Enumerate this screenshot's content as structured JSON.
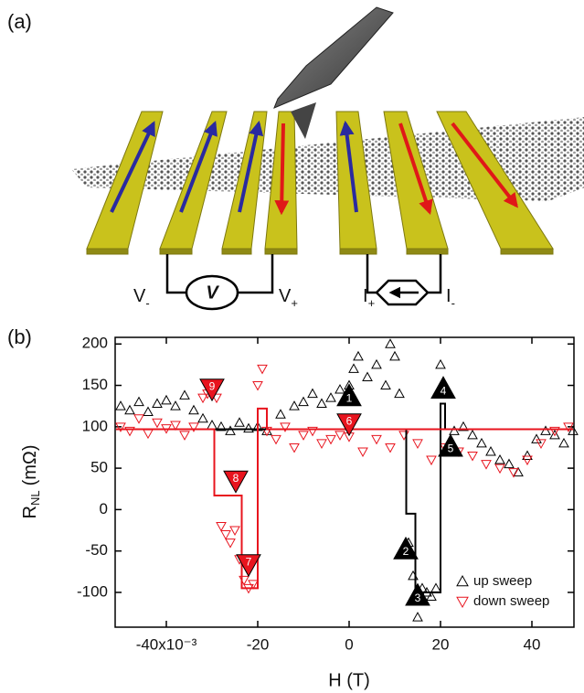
{
  "panel_labels": {
    "a": "(a)",
    "b": "(b)"
  },
  "diagram": {
    "terminals": [
      {
        "main": "V",
        "sub": "-"
      },
      {
        "main": "V",
        "sub": "+"
      },
      {
        "main": "I",
        "sub": "+"
      },
      {
        "main": "I",
        "sub": "-"
      }
    ],
    "voltmeter": "V"
  },
  "chart_data": {
    "type": "scatter",
    "x_label": "H (T)",
    "y_label": {
      "main": "R",
      "sub": "NL",
      "unit": "(mΩ)"
    },
    "xlim": [
      -51.2,
      49.2
    ],
    "ylim": [
      -142,
      208
    ],
    "xticks": [
      {
        "value": -40,
        "label": "-40x10⁻³"
      },
      -20,
      0,
      20,
      40
    ],
    "yticks": [
      -100,
      -50,
      0,
      50,
      100,
      150,
      200
    ],
    "legend": "lower right",
    "series": [
      {
        "name": "up sweep",
        "color": "#000000",
        "marker": "triangle-up",
        "x": [
          -50,
          -48,
          -46,
          -44,
          -42,
          -40,
          -38,
          -36,
          -34,
          -32,
          -30,
          -28,
          -26,
          -24,
          -22,
          -20,
          -18,
          -15,
          -12,
          -10,
          -8,
          -6,
          -4,
          -2,
          0,
          1,
          2,
          4,
          6,
          8,
          9,
          10,
          11,
          13,
          14,
          15,
          16,
          17,
          18,
          19,
          20,
          21,
          23,
          25,
          27,
          29,
          31,
          33,
          35,
          37,
          39,
          41,
          43,
          45,
          47,
          49
        ],
        "values": [
          125,
          120,
          130,
          118,
          128,
          132,
          125,
          138,
          120,
          110,
          102,
          100,
          95,
          105,
          98,
          100,
          95,
          115,
          125,
          130,
          140,
          128,
          135,
          145,
          150,
          170,
          185,
          160,
          175,
          150,
          200,
          185,
          140,
          -40,
          -80,
          -130,
          -95,
          -100,
          -105,
          -95,
          175,
          150,
          95,
          100,
          90,
          80,
          70,
          60,
          55,
          45,
          65,
          85,
          95,
          90,
          80,
          95
        ]
      },
      {
        "name": "down sweep",
        "color": "#e8141e",
        "marker": "triangle-down",
        "x": [
          -50,
          -48,
          -46,
          -44,
          -42,
          -40,
          -38,
          -36,
          -34,
          -32,
          -31,
          -30,
          -29,
          -28,
          -27,
          -26,
          -25,
          -24,
          -23,
          -22,
          -21,
          -20,
          -19,
          -18,
          -16,
          -14,
          -12,
          -10,
          -8,
          -6,
          -4,
          -2,
          0,
          3,
          6,
          9,
          12,
          15,
          18,
          21,
          24,
          27,
          30,
          33,
          36,
          39,
          42,
          45,
          48
        ],
        "values": [
          100,
          95,
          110,
          92,
          105,
          98,
          102,
          90,
          100,
          135,
          140,
          148,
          135,
          -20,
          -30,
          -40,
          -25,
          -60,
          -85,
          -95,
          -90,
          150,
          170,
          95,
          85,
          100,
          75,
          90,
          95,
          80,
          85,
          90,
          88,
          70,
          85,
          75,
          90,
          80,
          60,
          75,
          70,
          65,
          55,
          50,
          45,
          60,
          80,
          95,
          100
        ]
      }
    ],
    "lines": [
      {
        "color": "#000000",
        "x": [
          -51,
          12.5,
          12.5,
          14.5,
          14.5,
          20,
          20,
          21,
          21,
          49
        ],
        "values": [
          97,
          97,
          -5,
          -5,
          -100,
          -100,
          128,
          128,
          97,
          97
        ]
      },
      {
        "color": "#e8141e",
        "x": [
          49,
          -18,
          -18,
          -20,
          -20,
          -23.5,
          -23.5,
          -29.5,
          -29.5,
          -51
        ],
        "values": [
          97,
          97,
          122,
          122,
          -95,
          -95,
          17,
          17,
          97,
          97
        ]
      }
    ],
    "annotations": [
      {
        "label": "1",
        "x": 0,
        "y": 137,
        "series": 0
      },
      {
        "label": "2",
        "x": 12.4,
        "y": -48,
        "series": 0
      },
      {
        "label": "3",
        "x": 15,
        "y": -104,
        "series": 0
      },
      {
        "label": "4",
        "x": 20.6,
        "y": 146,
        "series": 0
      },
      {
        "label": "5",
        "x": 22.2,
        "y": 76,
        "series": 0
      },
      {
        "label": "6",
        "x": 0,
        "y": 104,
        "series": 1
      },
      {
        "label": "7",
        "x": -22,
        "y": -66,
        "series": 1
      },
      {
        "label": "8",
        "x": -24.8,
        "y": 35,
        "series": 1
      },
      {
        "label": "9",
        "x": -30,
        "y": 146,
        "series": 1
      }
    ]
  }
}
